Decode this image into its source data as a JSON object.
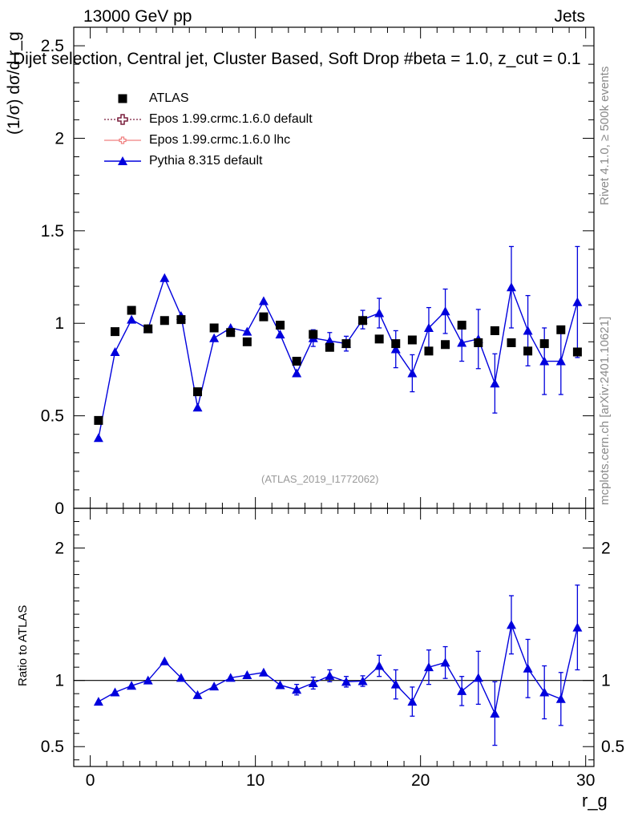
{
  "header": {
    "energy_label": "13000 GeV pp",
    "process_label": "Jets",
    "selection_label": "Dijet selection, Central jet, Cluster Based, Soft Drop #beta = 1.0, z_cut = 0.1"
  },
  "side_labels": {
    "rivet": "Rivet 4.1.0, ≥ 500k events",
    "mcplots": "mcplots.cern.ch [arXiv:2401.10621]"
  },
  "reference_label": "(ATLAS_2019_I1772062)",
  "colors": {
    "atlas": "#000000",
    "epos_default": "#7a1f3d",
    "epos_lhc": "#f08080",
    "pythia": "#0000dd"
  },
  "chart_data": [
    {
      "type": "line",
      "panel": "main",
      "ylabel": "(1/σ) dσ/d r_g",
      "xlim": [
        -1,
        30.5
      ],
      "ylim": [
        0,
        2.6
      ],
      "y_ticks": [
        0,
        0.5,
        1,
        1.5,
        2,
        2.5
      ],
      "y_tick_labels": [
        "0",
        "0.5",
        "1",
        "1.5",
        "2",
        "2.5"
      ],
      "legend": [
        "ATLAS",
        "Epos 1.99.crmc.1.6.0 default",
        "Epos 1.99.crmc.1.6.0 lhc",
        "Pythia 8.315 default"
      ],
      "legend_position": "top-left",
      "x": [
        0.5,
        1.5,
        2.5,
        3.5,
        4.5,
        5.5,
        6.5,
        7.5,
        8.5,
        9.5,
        10.5,
        11.5,
        12.5,
        13.5,
        14.5,
        15.5,
        16.5,
        17.5,
        18.5,
        19.5,
        20.5,
        21.5,
        22.5,
        23.5,
        24.5,
        25.5,
        26.5,
        27.5,
        28.5,
        29.5
      ],
      "series": [
        {
          "name": "ATLAS",
          "marker": "square",
          "values": [
            0.475,
            0.955,
            1.07,
            0.97,
            1.015,
            1.02,
            0.63,
            0.975,
            0.95,
            0.9,
            1.035,
            0.99,
            0.795,
            0.94,
            0.87,
            0.89,
            1.015,
            0.915,
            0.89,
            0.91,
            0.85,
            0.885,
            0.99,
            0.895,
            0.96,
            0.895,
            0.85,
            0.89,
            0.965,
            0.845
          ]
        },
        {
          "name": "Pythia 8.315 default",
          "marker": "triangle",
          "values": [
            0.38,
            0.845,
            1.02,
            0.97,
            1.245,
            1.04,
            0.545,
            0.92,
            0.975,
            0.955,
            1.12,
            0.94,
            0.73,
            0.92,
            0.905,
            0.89,
            1.02,
            1.055,
            0.86,
            0.73,
            0.975,
            1.065,
            0.895,
            0.915,
            0.675,
            1.195,
            0.96,
            0.795,
            0.795,
            1.115
          ],
          "errors": [
            0,
            0,
            0,
            0,
            0,
            0,
            0,
            0,
            0,
            0,
            0,
            0,
            0,
            0.045,
            0.045,
            0.04,
            0.05,
            0.08,
            0.1,
            0.1,
            0.11,
            0.12,
            0.1,
            0.16,
            0.16,
            0.22,
            0.19,
            0.18,
            0.18,
            0.3
          ]
        }
      ]
    },
    {
      "type": "line",
      "panel": "ratio",
      "ylabel": "Ratio to ATLAS",
      "xlabel": "r_g",
      "xlim": [
        -1,
        30.5
      ],
      "ylim": [
        0.35,
        2.3
      ],
      "y_ticks": [
        0.5,
        1,
        2
      ],
      "y_tick_labels": [
        "0.5",
        "1",
        "2"
      ],
      "x_ticks": [
        0,
        10,
        20,
        30
      ],
      "x_tick_labels": [
        "0",
        "10",
        "20",
        "30"
      ],
      "reference_line": 1,
      "x": [
        0.5,
        1.5,
        2.5,
        3.5,
        4.5,
        5.5,
        6.5,
        7.5,
        8.5,
        9.5,
        10.5,
        11.5,
        12.5,
        13.5,
        14.5,
        15.5,
        16.5,
        17.5,
        18.5,
        19.5,
        20.5,
        21.5,
        22.5,
        23.5,
        24.5,
        25.5,
        26.5,
        27.5,
        28.5,
        29.5
      ],
      "series": [
        {
          "name": "Pythia 8.315 default / ATLAS",
          "values": [
            0.84,
            0.91,
            0.96,
            1.0,
            1.145,
            1.02,
            0.89,
            0.955,
            1.02,
            1.04,
            1.06,
            0.965,
            0.93,
            0.98,
            1.035,
            0.99,
            0.995,
            1.11,
            0.97,
            0.84,
            1.1,
            1.135,
            0.92,
            1.02,
            0.75,
            1.42,
            1.09,
            0.91,
            0.86,
            1.4
          ],
          "errors": [
            0,
            0,
            0,
            0,
            0,
            0,
            0,
            0,
            0,
            0,
            0,
            0,
            0.04,
            0.045,
            0.045,
            0.04,
            0.04,
            0.08,
            0.11,
            0.11,
            0.13,
            0.12,
            0.11,
            0.2,
            0.24,
            0.22,
            0.22,
            0.2,
            0.2,
            0.32
          ]
        }
      ]
    }
  ]
}
